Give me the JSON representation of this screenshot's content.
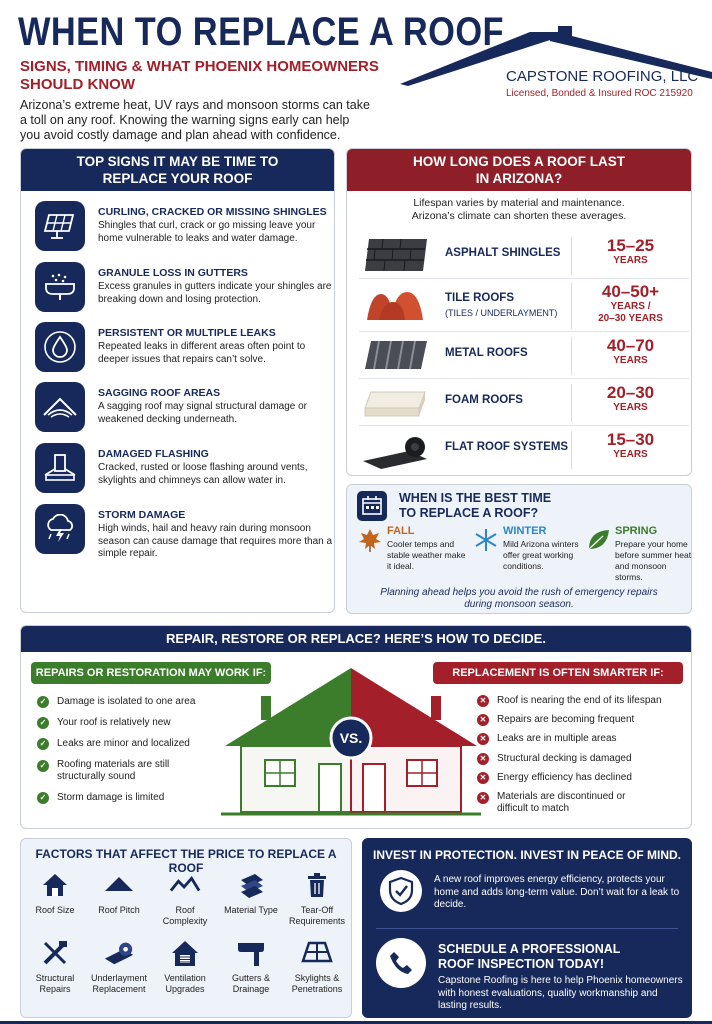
{
  "header": {
    "title": "WHEN TO REPLACE A ROOF",
    "subtitle": "SIGNS, TIMING & WHAT PHOENIX HOMEOWNERS SHOULD KNOW",
    "intro": "Arizona’s extreme heat, UV rays and monsoon storms can take a toll on any roof. Knowing the warning signs early can help you avoid costly damage and plan ahead with confidence.",
    "company": "CAPSTONE ROOFING, LLC",
    "license": "Licensed, Bonded & Insured ROC 215920"
  },
  "signs": {
    "title_line1": "TOP SIGNS IT MAY BE TIME TO",
    "title_line2": "REPLACE YOUR ROOF",
    "items": [
      {
        "icon": "solar-shingles-icon",
        "title": "CURLING, CRACKED OR MISSING SHINGLES",
        "desc": "Shingles that curl, crack or go missing leave your home vulnerable to leaks and water damage."
      },
      {
        "icon": "gutter-granules-icon",
        "title": "GRANULE LOSS IN GUTTERS",
        "desc": "Excess granules in gutters indicate your shingles are breaking down and losing protection."
      },
      {
        "icon": "water-drop-icon",
        "title": "PERSISTENT OR MULTIPLE LEAKS",
        "desc": "Repeated leaks in different areas often point to deeper issues that repairs can’t solve."
      },
      {
        "icon": "sagging-roof-icon",
        "title": "SAGGING ROOF AREAS",
        "desc": "A sagging roof may signal structural damage or weakened decking underneath."
      },
      {
        "icon": "flashing-icon",
        "title": "DAMAGED FLASHING",
        "desc": "Cracked, rusted or loose flashing around vents, skylights and chimneys can allow water in."
      },
      {
        "icon": "storm-cloud-icon",
        "title": "STORM DAMAGE",
        "desc": "High winds, hail and heavy rain during monsoon season can cause damage that requires more than a simple repair."
      }
    ]
  },
  "lifespan": {
    "title_line1": "HOW LONG DOES A ROOF LAST",
    "title_line2": "IN ARIZONA?",
    "note_line1": "Lifespan varies by material and maintenance.",
    "note_line2": "Arizona’s climate can shorten these averages.",
    "rows": [
      {
        "material": "ASPHALT SHINGLES",
        "sub": "",
        "years": "15–25",
        "unit": "YEARS",
        "unit2": ""
      },
      {
        "material": "TILE ROOFS",
        "sub": "(TILES / UNDERLAYMENT)",
        "years": "40–50+",
        "unit": "YEARS /",
        "unit2": "20–30 YEARS"
      },
      {
        "material": "METAL ROOFS",
        "sub": "",
        "years": "40–70",
        "unit": "YEARS",
        "unit2": ""
      },
      {
        "material": "FOAM ROOFS",
        "sub": "",
        "years": "20–30",
        "unit": "YEARS",
        "unit2": ""
      },
      {
        "material": "FLAT ROOF SYSTEMS",
        "sub": "",
        "years": "15–30",
        "unit": "YEARS",
        "unit2": ""
      }
    ]
  },
  "best_time": {
    "title_line1": "WHEN IS THE BEST TIME",
    "title_line2": "TO REPLACE A ROOF?",
    "seasons": [
      {
        "name": "FALL",
        "desc": "Cooler temps and stable weather make it ideal.",
        "color": "#c1651d"
      },
      {
        "name": "WINTER",
        "desc": "Mild Arizona winters offer great working conditions.",
        "color": "#2a86c8"
      },
      {
        "name": "SPRING",
        "desc": "Prepare your home before summer heat and monsoon storms.",
        "color": "#3c7d2c"
      }
    ],
    "note_line1": "Planning ahead helps you avoid the rush of emergency repairs",
    "note_line2": "during monsoon season."
  },
  "decide": {
    "banner": "REPAIR, RESTORE OR REPLACE?  HERE’S HOW TO DECIDE.",
    "repair_title": "REPAIRS OR RESTORATION MAY WORK IF:",
    "repair_items": [
      "Damage is isolated to one area",
      "Your roof is relatively new",
      "Leaks are minor and localized",
      "Roofing materials are still structurally sound",
      "Storm damage is limited"
    ],
    "replace_title": "REPLACEMENT IS OFTEN SMARTER IF:",
    "replace_items": [
      "Roof is nearing the end of its lifespan",
      "Repairs are becoming frequent",
      "Leaks are in multiple areas",
      "Structural decking is damaged",
      "Energy efficiency has declined",
      "Materials are discontinued or difficult to match"
    ],
    "vs": "VS."
  },
  "factors": {
    "title": "FACTORS THAT AFFECT THE PRICE TO REPLACE A ROOF",
    "items": [
      {
        "icon": "house-icon",
        "label": "Roof Size"
      },
      {
        "icon": "roof-pitch-icon",
        "label": "Roof Pitch"
      },
      {
        "icon": "roof-complexity-icon",
        "label": "Roof Complexity"
      },
      {
        "icon": "material-stack-icon",
        "label": "Material Type"
      },
      {
        "icon": "trash-can-icon",
        "label": "Tear-Off Requirements"
      },
      {
        "icon": "tools-icon",
        "label": "Structural Repairs"
      },
      {
        "icon": "underlayment-roll-icon",
        "label": "Underlayment Replacement"
      },
      {
        "icon": "ventilation-house-icon",
        "label": "Ventilation Upgrades"
      },
      {
        "icon": "gutter-icon",
        "label": "Gutters & Drainage"
      },
      {
        "icon": "skylight-icon",
        "label": "Skylights & Penetrations"
      }
    ]
  },
  "invest": {
    "title": "INVEST IN PROTECTION. INVEST IN PEACE OF MIND.",
    "desc": "A new roof improves energy efficiency, protects your home and adds long-term value. Don’t wait for a leak to decide.",
    "cta_line1": "SCHEDULE A PROFESSIONAL",
    "cta_line2": "ROOF INSPECTION TODAY!",
    "cta_desc": "Capstone Roofing is here to help Phoenix homeowners with honest evaluations, quality workmanship and lasting results."
  },
  "colors": {
    "navy": "#17295a",
    "red": "#a3202a",
    "green": "#3c7d2c"
  }
}
